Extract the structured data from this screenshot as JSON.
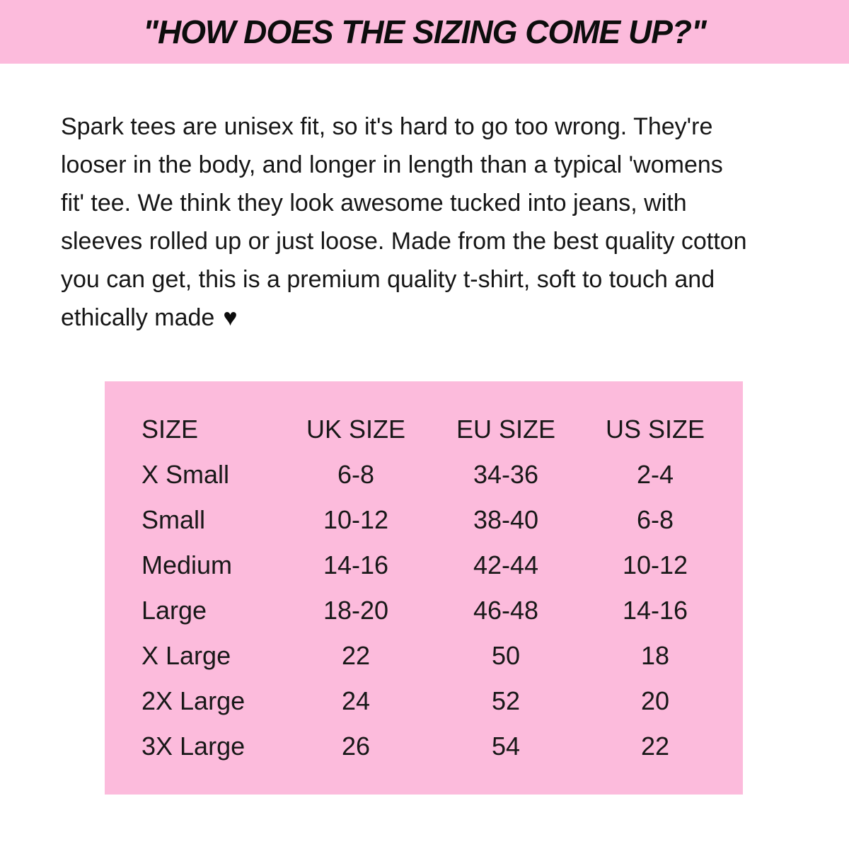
{
  "colors": {
    "pink": "#FCBBDC",
    "text": "#121212",
    "background": "#FFFFFF"
  },
  "header": {
    "title": "\"HOW DOES THE SIZING COME UP?\""
  },
  "intro": {
    "lines": [
      "Spark tees are unisex fit, so it's hard to go too wrong. They're",
      "looser in the body, and longer in length than a typical 'womens",
      "fit' tee. We think they look awesome tucked into jeans, with",
      "sleeves rolled up or just loose. Made from the best quality cotton",
      "you can get, this is a premium quality t-shirt, soft to touch and",
      "ethically made"
    ],
    "heart": "♥"
  },
  "size_table": {
    "headers": [
      "SIZE",
      "UK SIZE",
      "EU SIZE",
      "US SIZE"
    ],
    "rows": [
      [
        "X Small",
        "6-8",
        "34-36",
        "2-4"
      ],
      [
        "Small",
        "10-12",
        "38-40",
        "6-8"
      ],
      [
        "Medium",
        "14-16",
        "42-44",
        "10-12"
      ],
      [
        "Large",
        "18-20",
        "46-48",
        "14-16"
      ],
      [
        "X Large",
        "22",
        "50",
        "18"
      ],
      [
        "2X Large",
        "24",
        "52",
        "20"
      ],
      [
        "3X Large",
        "26",
        "54",
        "22"
      ]
    ]
  }
}
